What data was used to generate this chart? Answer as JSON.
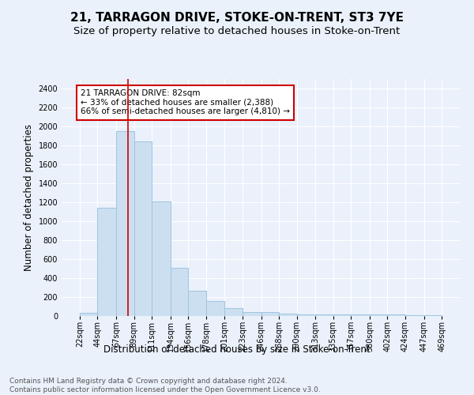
{
  "title": "21, TARRAGON DRIVE, STOKE-ON-TRENT, ST3 7YE",
  "subtitle": "Size of property relative to detached houses in Stoke-on-Trent",
  "xlabel": "Distribution of detached houses by size in Stoke-on-Trent",
  "ylabel": "Number of detached properties",
  "footer_line1": "Contains HM Land Registry data © Crown copyright and database right 2024.",
  "footer_line2": "Contains public sector information licensed under the Open Government Licence v3.0.",
  "annotation_title": "21 TARRAGON DRIVE: 82sqm",
  "annotation_line1": "← 33% of detached houses are smaller (2,388)",
  "annotation_line2": "66% of semi-detached houses are larger (4,810) →",
  "bar_color": "#ccdff0",
  "bar_edge_color": "#a0c4e0",
  "vline_x": 82,
  "vline_color": "#cc0000",
  "bin_edges": [
    22,
    44,
    67,
    89,
    111,
    134,
    156,
    178,
    201,
    223,
    246,
    268,
    290,
    313,
    335,
    357,
    380,
    402,
    424,
    447,
    469
  ],
  "bar_heights": [
    30,
    1140,
    1950,
    1840,
    1210,
    510,
    265,
    155,
    85,
    45,
    40,
    25,
    20,
    20,
    20,
    20,
    20,
    20,
    5,
    5
  ],
  "ylim": [
    0,
    2500
  ],
  "yticks": [
    0,
    200,
    400,
    600,
    800,
    1000,
    1200,
    1400,
    1600,
    1800,
    2000,
    2200,
    2400
  ],
  "tick_labels": [
    "22sqm",
    "44sqm",
    "67sqm",
    "89sqm",
    "111sqm",
    "134sqm",
    "156sqm",
    "178sqm",
    "201sqm",
    "223sqm",
    "246sqm",
    "268sqm",
    "290sqm",
    "313sqm",
    "335sqm",
    "357sqm",
    "380sqm",
    "402sqm",
    "424sqm",
    "447sqm",
    "469sqm"
  ],
  "background_color": "#eaf1fb",
  "annotation_box_color": "#ffffff",
  "annotation_box_edge": "#cc0000",
  "title_fontsize": 11,
  "subtitle_fontsize": 9.5,
  "axis_label_fontsize": 8.5,
  "tick_fontsize": 7,
  "annotation_fontsize": 7.5,
  "footer_fontsize": 6.5
}
